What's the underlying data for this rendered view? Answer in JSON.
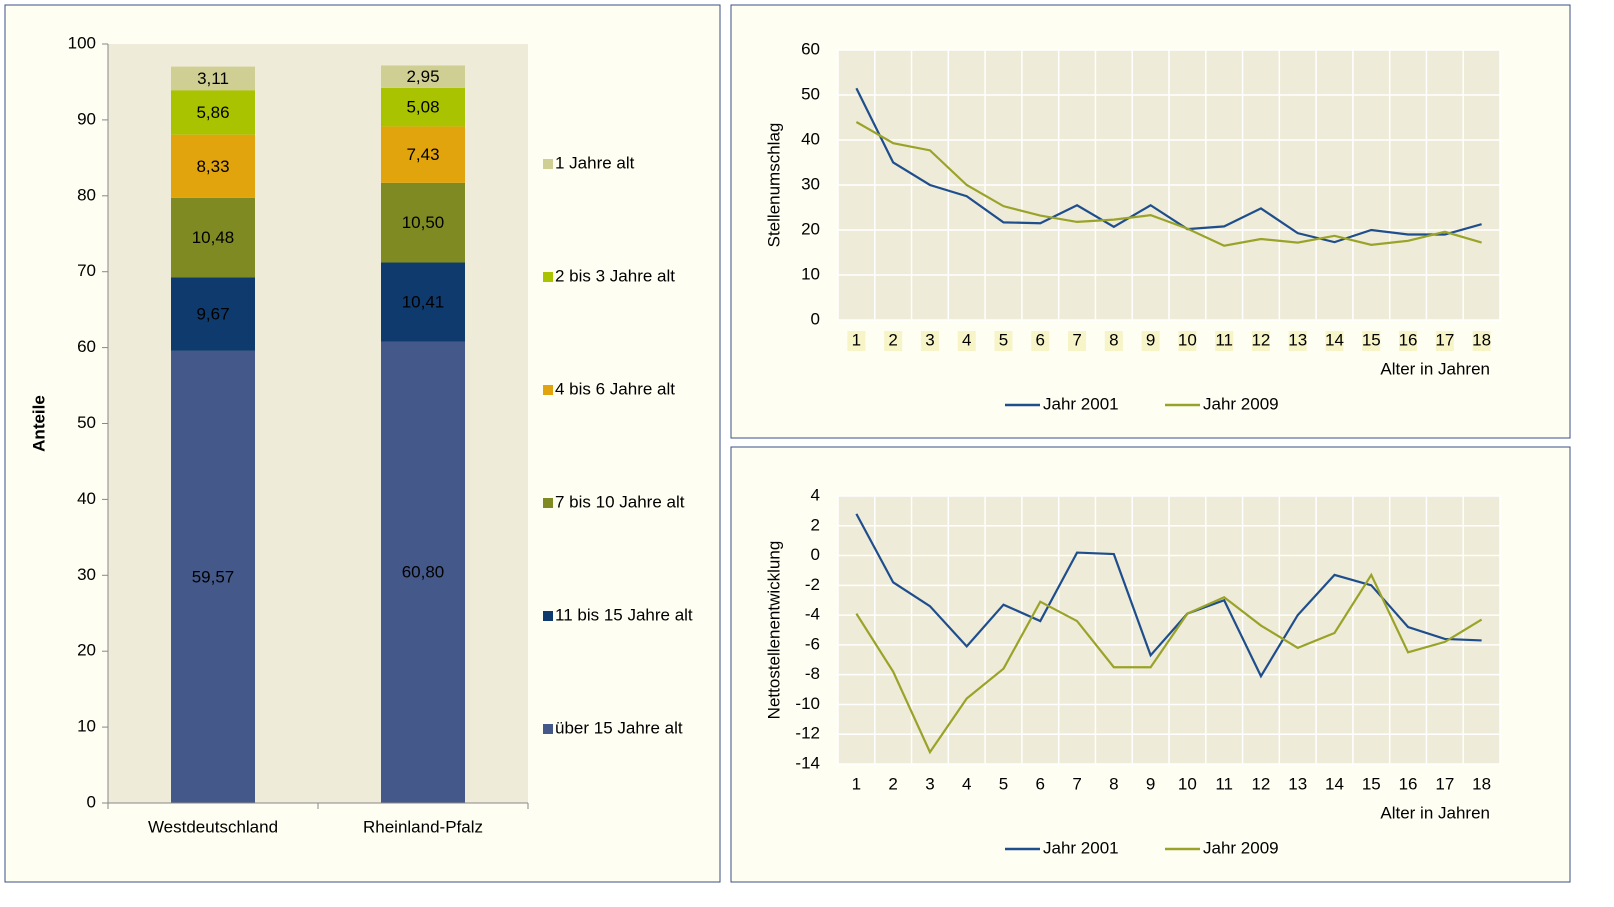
{
  "chart_data": [
    {
      "type": "stacked_bar",
      "y_label": "Anteile",
      "categories": [
        "Westdeutschland",
        "Rheinland-Pfalz"
      ],
      "series": [
        {
          "name": "über 15 Jahre alt",
          "color": "#44598a",
          "values": [
            59.57,
            60.8
          ],
          "value_labels": [
            "59,57",
            "60,80"
          ]
        },
        {
          "name": "11 bis 15 Jahre alt",
          "color": "#0f3a6e",
          "values": [
            9.67,
            10.41
          ],
          "value_labels": [
            "9,67",
            "10,41"
          ]
        },
        {
          "name": "7 bis 10 Jahre alt",
          "color": "#7f8a23",
          "values": [
            10.48,
            10.5
          ],
          "value_labels": [
            "10,48",
            "10,50"
          ]
        },
        {
          "name": "4 bis 6 Jahre alt",
          "color": "#e2a40d",
          "values": [
            8.33,
            7.43
          ],
          "value_labels": [
            "8,33",
            "7,43"
          ]
        },
        {
          "name": "2 bis 3 Jahre alt",
          "color": "#a9c301",
          "values": [
            5.86,
            5.08
          ],
          "value_labels": [
            "5,86",
            "5,08"
          ]
        },
        {
          "name": "1 Jahre alt",
          "color": "#d0cf93",
          "values": [
            3.11,
            2.95
          ],
          "value_labels": [
            "3,11",
            "2,95"
          ]
        }
      ],
      "ylim": [
        0,
        100
      ],
      "yticks": [
        0,
        10,
        20,
        30,
        40,
        50,
        60,
        70,
        80,
        90,
        100
      ],
      "grid": false,
      "legend": "right"
    },
    {
      "type": "line",
      "y_label": "Stellenumschlag",
      "x_label": "Alter in Jahren",
      "categories": [
        "1",
        "2",
        "3",
        "4",
        "5",
        "6",
        "7",
        "8",
        "9",
        "10",
        "11",
        "12",
        "13",
        "14",
        "15",
        "16",
        "17",
        "18"
      ],
      "series": [
        {
          "name": "Jahr 2001",
          "color": "#1f4e8c",
          "values": [
            51.5,
            35,
            30,
            27.5,
            21.7,
            21.5,
            25.5,
            20.7,
            25.5,
            20.2,
            20.8,
            24.8,
            19.3,
            17.3,
            20,
            19,
            19,
            21.3
          ]
        },
        {
          "name": "Jahr 2009",
          "color": "#9aa329",
          "values": [
            44,
            39.3,
            37.7,
            30,
            25.3,
            23.2,
            21.8,
            22.3,
            23.3,
            20.3,
            16.5,
            18,
            17.2,
            18.7,
            16.7,
            17.6,
            19.6,
            17.2
          ]
        }
      ],
      "ylim": [
        0,
        60
      ],
      "yticks": [
        0,
        10,
        20,
        30,
        40,
        50,
        60
      ],
      "grid": true,
      "legend": "bottom"
    },
    {
      "type": "line",
      "y_label": "Nettostellenentwicklung",
      "x_label": "Alter in Jahren",
      "categories": [
        "1",
        "2",
        "3",
        "4",
        "5",
        "6",
        "7",
        "8",
        "9",
        "10",
        "11",
        "12",
        "13",
        "14",
        "15",
        "16",
        "17",
        "18"
      ],
      "series": [
        {
          "name": "Jahr 2001",
          "color": "#1f4e8c",
          "values": [
            2.8,
            -1.8,
            -3.4,
            -6.1,
            -3.3,
            -4.4,
            0.2,
            0.1,
            -6.7,
            -3.9,
            -3.0,
            -8.1,
            -4.0,
            -1.3,
            -2.0,
            -4.8,
            -5.6,
            -5.7
          ]
        },
        {
          "name": "Jahr 2009",
          "color": "#9aa329",
          "values": [
            -3.9,
            -7.8,
            -13.2,
            -9.6,
            -7.6,
            -3.1,
            -4.4,
            -7.5,
            -7.5,
            -3.9,
            -2.8,
            -4.7,
            -6.2,
            -5.2,
            -1.3,
            -6.5,
            -5.8,
            -4.3
          ]
        }
      ],
      "ylim": [
        -14,
        4
      ],
      "yticks": [
        -14,
        -12,
        -10,
        -8,
        -6,
        -4,
        -2,
        0,
        2,
        4
      ],
      "grid": true,
      "legend": "bottom"
    }
  ]
}
